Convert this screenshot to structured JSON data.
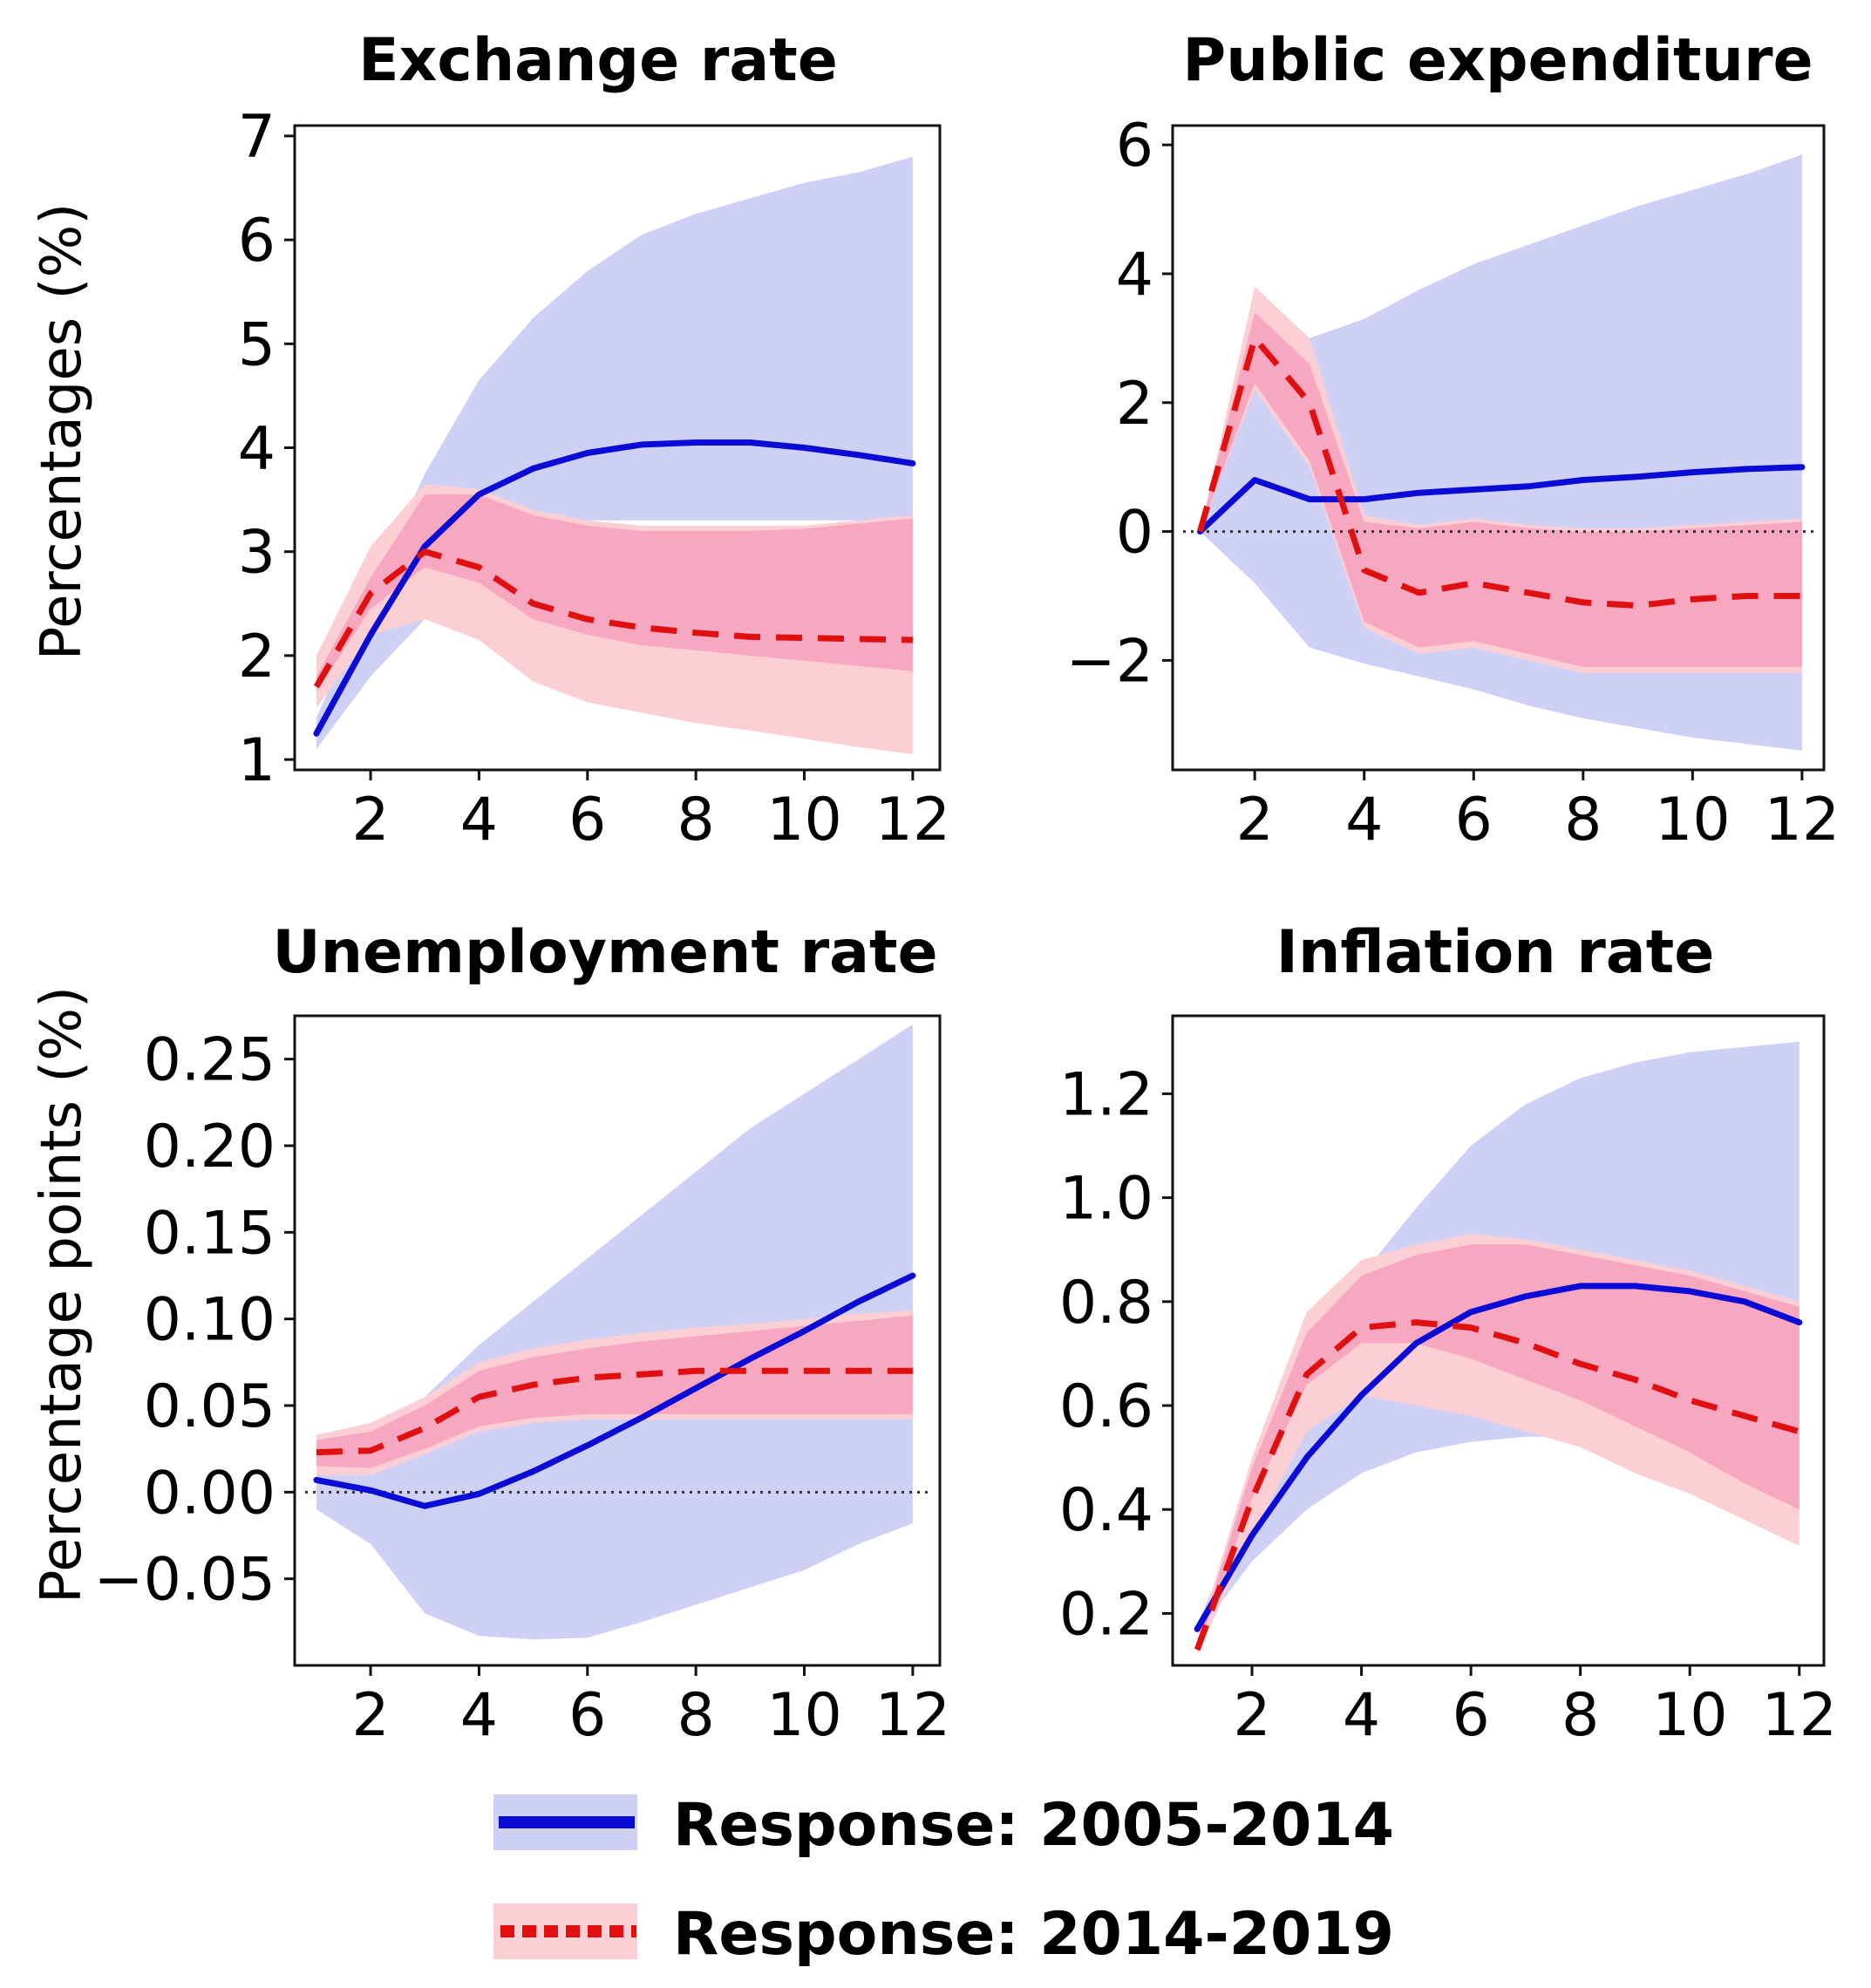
{
  "figure": {
    "ylabel_top": "Percentages (%)",
    "ylabel_bottom": "Percentage points  (%)",
    "colors": {
      "period1_line": "#0b0bd6",
      "period1_band": "#cfd0f6",
      "period2_line": "#e01010",
      "period2_band_outer": "#fbcfd3",
      "period2_band_inner": "#f7a8c0"
    }
  },
  "legend": {
    "items": [
      {
        "label": "Response: 2005-2014",
        "style": "solid",
        "color": "#0b0bd6"
      },
      {
        "label": "Response: 2014-2019",
        "style": "dotted",
        "color": "#e01010"
      }
    ]
  },
  "chart_data": [
    {
      "type": "line",
      "title": "Exchange rate",
      "xlabel": "",
      "ylabel": "Percentages (%)",
      "x": [
        1,
        2,
        3,
        4,
        5,
        6,
        7,
        8,
        9,
        10,
        11,
        12
      ],
      "xticks": [
        2,
        4,
        6,
        8,
        10,
        12
      ],
      "xtick_labels": [
        "2",
        "4",
        "6",
        "8",
        "10",
        "12"
      ],
      "xlim": [
        0.6,
        12.5
      ],
      "ylim": [
        0.9,
        7.1
      ],
      "yticks": [
        1,
        2,
        3,
        4,
        5,
        6,
        7
      ],
      "ytick_labels": [
        "1",
        "2",
        "3",
        "4",
        "5",
        "6",
        "7"
      ],
      "zero_line": false,
      "series": [
        {
          "name": "Response: 2005-2014",
          "style": "solid",
          "values": [
            1.25,
            2.2,
            3.05,
            3.55,
            3.8,
            3.95,
            4.03,
            4.05,
            4.05,
            4.0,
            3.93,
            3.85
          ],
          "band_lower": [
            1.1,
            1.8,
            2.35,
            2.9,
            3.2,
            3.3,
            3.3,
            3.3,
            3.3,
            3.3,
            3.3,
            3.3
          ],
          "band_upper": [
            1.4,
            2.6,
            3.75,
            4.65,
            5.25,
            5.7,
            6.05,
            6.25,
            6.4,
            6.55,
            6.65,
            6.8
          ]
        },
        {
          "name": "Response: 2014-2019",
          "style": "dashed",
          "values": [
            1.7,
            2.6,
            3.0,
            2.85,
            2.5,
            2.35,
            2.27,
            2.22,
            2.18,
            2.17,
            2.16,
            2.15
          ],
          "band_lower": [
            1.5,
            2.2,
            2.35,
            2.15,
            1.75,
            1.55,
            1.45,
            1.35,
            1.28,
            1.2,
            1.12,
            1.05
          ],
          "band_upper": [
            2.0,
            3.05,
            3.65,
            3.6,
            3.4,
            3.3,
            3.25,
            3.25,
            3.25,
            3.25,
            3.3,
            3.35
          ],
          "band_inner_lower": [
            1.65,
            2.45,
            2.85,
            2.7,
            2.35,
            2.2,
            2.1,
            2.05,
            2.0,
            1.95,
            1.9,
            1.85
          ],
          "band_inner_upper": [
            1.8,
            2.75,
            3.55,
            3.55,
            3.35,
            3.25,
            3.2,
            3.2,
            3.2,
            3.22,
            3.27,
            3.32
          ]
        }
      ]
    },
    {
      "type": "line",
      "title": "Public expenditure",
      "xlabel": "",
      "ylabel": "",
      "x": [
        1,
        2,
        3,
        4,
        5,
        6,
        7,
        8,
        9,
        10,
        11,
        12
      ],
      "xticks": [
        2,
        4,
        6,
        8,
        10,
        12
      ],
      "xtick_labels": [
        "2",
        "4",
        "6",
        "8",
        "10",
        "12"
      ],
      "xlim": [
        0.5,
        12.4
      ],
      "ylim": [
        -3.7,
        6.3
      ],
      "yticks": [
        -2,
        0,
        2,
        4,
        6
      ],
      "ytick_labels": [
        "−2",
        "0",
        "2",
        "4",
        "6"
      ],
      "zero_line": true,
      "series": [
        {
          "name": "Response: 2005-2014",
          "style": "solid",
          "values": [
            0.0,
            0.8,
            0.5,
            0.5,
            0.6,
            0.65,
            0.7,
            0.8,
            0.85,
            0.92,
            0.97,
            1.0
          ],
          "band_lower": [
            0.0,
            -0.8,
            -1.8,
            -2.05,
            -2.25,
            -2.45,
            -2.7,
            -2.9,
            -3.05,
            -3.2,
            -3.3,
            -3.4
          ],
          "band_upper": [
            0.0,
            2.4,
            3.0,
            3.3,
            3.75,
            4.15,
            4.45,
            4.75,
            5.05,
            5.3,
            5.55,
            5.85
          ]
        },
        {
          "name": "Response: 2014-2019",
          "style": "dashed",
          "values": [
            0.0,
            3.0,
            2.0,
            -0.6,
            -0.95,
            -0.8,
            -0.95,
            -1.1,
            -1.15,
            -1.05,
            -1.0,
            -1.0
          ],
          "band_lower": [
            0.0,
            2.2,
            1.0,
            -1.5,
            -1.9,
            -1.8,
            -2.0,
            -2.2,
            -2.2,
            -2.2,
            -2.2,
            -2.2
          ],
          "band_upper": [
            0.0,
            3.8,
            3.0,
            0.25,
            0.1,
            0.2,
            0.1,
            0.05,
            0.05,
            0.1,
            0.15,
            0.2
          ],
          "band_inner_lower": [
            0.0,
            2.3,
            1.1,
            -1.4,
            -1.8,
            -1.7,
            -1.9,
            -2.1,
            -2.1,
            -2.1,
            -2.1,
            -2.1
          ],
          "band_inner_upper": [
            0.0,
            3.4,
            2.6,
            0.15,
            0.05,
            0.15,
            0.05,
            0.0,
            0.0,
            0.05,
            0.1,
            0.15
          ]
        }
      ]
    },
    {
      "type": "line",
      "title": "Unemployment rate",
      "xlabel": "",
      "ylabel": "Percentage points  (%)",
      "x": [
        1,
        2,
        3,
        4,
        5,
        6,
        7,
        8,
        9,
        10,
        11,
        12
      ],
      "xticks": [
        2,
        4,
        6,
        8,
        10,
        12
      ],
      "xtick_labels": [
        "2",
        "4",
        "6",
        "8",
        "10",
        "12"
      ],
      "xlim": [
        0.6,
        12.5
      ],
      "ylim": [
        -0.1,
        0.275
      ],
      "yticks": [
        -0.05,
        0.0,
        0.05,
        0.1,
        0.15,
        0.2,
        0.25
      ],
      "ytick_labels": [
        "−0.05",
        "0.00",
        "0.05",
        "0.10",
        "0.15",
        "0.20",
        "0.25"
      ],
      "zero_line": true,
      "series": [
        {
          "name": "Response: 2005-2014",
          "style": "solid",
          "values": [
            0.007,
            0.001,
            -0.008,
            -0.001,
            0.012,
            0.027,
            0.043,
            0.06,
            0.077,
            0.093,
            0.11,
            0.125
          ],
          "band_lower": [
            -0.01,
            -0.03,
            -0.07,
            -0.083,
            -0.085,
            -0.084,
            -0.075,
            -0.065,
            -0.055,
            -0.045,
            -0.03,
            -0.018
          ],
          "band_upper": [
            0.01,
            0.025,
            0.055,
            0.085,
            0.11,
            0.135,
            0.16,
            0.185,
            0.21,
            0.23,
            0.25,
            0.27
          ]
        },
        {
          "name": "Response: 2014-2019",
          "style": "dashed",
          "values": [
            0.023,
            0.024,
            0.037,
            0.055,
            0.062,
            0.066,
            0.068,
            0.07,
            0.07,
            0.07,
            0.07,
            0.07
          ],
          "band_lower": [
            0.01,
            0.01,
            0.022,
            0.035,
            0.04,
            0.042,
            0.042,
            0.042,
            0.042,
            0.042,
            0.042,
            0.042
          ],
          "band_upper": [
            0.033,
            0.04,
            0.055,
            0.075,
            0.083,
            0.088,
            0.092,
            0.095,
            0.097,
            0.1,
            0.103,
            0.105
          ],
          "band_inner_lower": [
            0.015,
            0.014,
            0.025,
            0.038,
            0.043,
            0.045,
            0.045,
            0.045,
            0.045,
            0.045,
            0.045,
            0.045
          ],
          "band_inner_upper": [
            0.03,
            0.035,
            0.05,
            0.07,
            0.078,
            0.083,
            0.087,
            0.09,
            0.093,
            0.096,
            0.099,
            0.102
          ]
        }
      ]
    },
    {
      "type": "line",
      "title": "Inflation rate",
      "xlabel": "",
      "ylabel": "",
      "x": [
        1,
        2,
        3,
        4,
        5,
        6,
        7,
        8,
        9,
        10,
        11,
        12
      ],
      "xticks": [
        2,
        4,
        6,
        8,
        10,
        12
      ],
      "xtick_labels": [
        "2",
        "4",
        "6",
        "8",
        "10",
        "12"
      ],
      "xlim": [
        0.55,
        12.45
      ],
      "ylim": [
        0.1,
        1.35
      ],
      "yticks": [
        0.2,
        0.4,
        0.6,
        0.8,
        1.0,
        1.2
      ],
      "ytick_labels": [
        "0.2",
        "0.4",
        "0.6",
        "0.8",
        "1.0",
        "1.2"
      ],
      "zero_line": false,
      "series": [
        {
          "name": "Response: 2005-2014",
          "style": "solid",
          "values": [
            0.17,
            0.35,
            0.5,
            0.62,
            0.72,
            0.78,
            0.81,
            0.83,
            0.83,
            0.82,
            0.8,
            0.76
          ],
          "band_lower": [
            0.16,
            0.3,
            0.4,
            0.47,
            0.51,
            0.53,
            0.54,
            0.54,
            0.54,
            0.54,
            0.54,
            0.54
          ],
          "band_upper": [
            0.18,
            0.42,
            0.66,
            0.85,
            0.98,
            1.1,
            1.18,
            1.23,
            1.26,
            1.28,
            1.29,
            1.3
          ]
        },
        {
          "name": "Response: 2014-2019",
          "style": "dashed",
          "values": [
            0.13,
            0.42,
            0.66,
            0.75,
            0.76,
            0.75,
            0.72,
            0.68,
            0.65,
            0.61,
            0.58,
            0.55
          ],
          "band_lower": [
            0.12,
            0.35,
            0.55,
            0.62,
            0.6,
            0.58,
            0.55,
            0.52,
            0.47,
            0.43,
            0.38,
            0.33
          ],
          "band_upper": [
            0.15,
            0.5,
            0.78,
            0.88,
            0.91,
            0.93,
            0.92,
            0.9,
            0.88,
            0.86,
            0.83,
            0.8
          ],
          "band_inner_lower": [
            0.13,
            0.42,
            0.64,
            0.72,
            0.72,
            0.69,
            0.65,
            0.61,
            0.56,
            0.51,
            0.45,
            0.4
          ],
          "band_inner_upper": [
            0.14,
            0.48,
            0.74,
            0.85,
            0.89,
            0.91,
            0.91,
            0.89,
            0.87,
            0.85,
            0.82,
            0.79
          ]
        }
      ]
    }
  ]
}
